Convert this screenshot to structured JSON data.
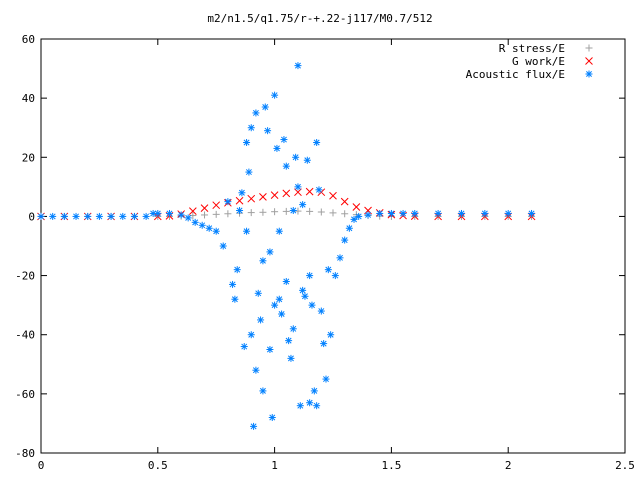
{
  "chart_data": {
    "type": "scatter",
    "title": "m2/n1.5/q1.75/r-+.22-j117/M0.7/512",
    "xlabel": "",
    "ylabel": "",
    "xlim": [
      0,
      2.5
    ],
    "ylim": [
      -80,
      60
    ],
    "x_ticks": [
      0,
      0.5,
      1,
      1.5,
      2,
      2.5
    ],
    "x_tick_labels": [
      "0",
      "0.5",
      "1",
      "1.5",
      "2",
      "2.5"
    ],
    "y_ticks": [
      -80,
      -60,
      -40,
      -20,
      0,
      20,
      40,
      60
    ],
    "y_tick_labels": [
      "-80",
      "-60",
      "-40",
      "-20",
      "0",
      "20",
      "40",
      "60"
    ],
    "grid": false,
    "legend_position": "top-right",
    "series": [
      {
        "name": "R stress/E",
        "color": "#a0a0a0",
        "marker": "plus",
        "x": [
          0.0,
          0.1,
          0.2,
          0.3,
          0.4,
          0.5,
          0.55,
          0.6,
          0.65,
          0.7,
          0.75,
          0.8,
          0.85,
          0.9,
          0.95,
          1.0,
          1.05,
          1.1,
          1.15,
          1.2,
          1.25,
          1.3,
          1.35,
          1.4,
          1.45,
          1.5,
          1.6,
          1.7,
          1.8,
          1.9,
          2.0,
          2.1
        ],
        "y": [
          0,
          0,
          0,
          0,
          0,
          0,
          0,
          0.1,
          0.3,
          0.5,
          0.7,
          0.9,
          1.1,
          1.3,
          1.4,
          1.6,
          1.7,
          1.8,
          1.7,
          1.5,
          1.2,
          0.9,
          0.6,
          0.3,
          0.1,
          0,
          0,
          0,
          0,
          0,
          0,
          0
        ]
      },
      {
        "name": "G work/E",
        "color": "#ff0000",
        "marker": "cross",
        "x": [
          0.0,
          0.1,
          0.2,
          0.3,
          0.4,
          0.5,
          0.55,
          0.6,
          0.65,
          0.7,
          0.75,
          0.8,
          0.85,
          0.9,
          0.95,
          1.0,
          1.05,
          1.1,
          1.15,
          1.2,
          1.25,
          1.3,
          1.35,
          1.4,
          1.45,
          1.5,
          1.55,
          1.6,
          1.7,
          1.8,
          1.9,
          2.0,
          2.1
        ],
        "y": [
          0,
          0,
          0,
          0,
          0,
          0,
          0.2,
          0.8,
          1.8,
          2.8,
          3.8,
          4.6,
          5.3,
          6.0,
          6.6,
          7.2,
          7.8,
          8.2,
          8.4,
          8.2,
          7.0,
          5.0,
          3.2,
          2.0,
          1.2,
          0.6,
          0.3,
          0.1,
          0,
          0,
          0,
          0,
          0
        ]
      },
      {
        "name": "Acoustic flux/E",
        "color": "#0080ff",
        "marker": "asterisk",
        "x": [
          0.0,
          0.05,
          0.1,
          0.15,
          0.2,
          0.25,
          0.3,
          0.35,
          0.4,
          0.45,
          0.48,
          0.5,
          0.55,
          0.6,
          0.63,
          0.66,
          0.69,
          0.72,
          0.75,
          0.78,
          0.8,
          0.82,
          0.84,
          0.86,
          0.88,
          0.9,
          0.92,
          0.94,
          0.96,
          0.98,
          1.0,
          1.02,
          1.04,
          1.06,
          1.08,
          1.1,
          1.12,
          1.14,
          1.16,
          1.18,
          1.2,
          1.22,
          1.24,
          1.26,
          1.28,
          1.3,
          1.32,
          1.34,
          1.36,
          1.4,
          1.45,
          1.5,
          1.55,
          1.6,
          1.7,
          1.8,
          1.9,
          2.0,
          2.1,
          0.83,
          0.87,
          0.89,
          0.91,
          0.93,
          0.95,
          0.97,
          0.99,
          1.01,
          1.03,
          1.05,
          1.07,
          1.09,
          1.11,
          1.13,
          1.15,
          1.17,
          1.19,
          1.21,
          1.23,
          0.85,
          0.95,
          1.05,
          1.15,
          0.9,
          1.0,
          1.1,
          0.88,
          0.98,
          1.08,
          1.18,
          0.92,
          1.02,
          1.12
        ],
        "y": [
          0,
          0,
          0,
          0,
          0,
          0,
          0,
          0,
          0,
          0,
          1,
          1,
          1,
          0.5,
          -0.5,
          -2,
          -3,
          -4,
          -5,
          -10,
          5,
          -23,
          -18,
          8,
          25,
          -40,
          35,
          -35,
          37,
          -45,
          41,
          -5,
          26,
          -42,
          2,
          51,
          -25,
          19,
          -30,
          25,
          -32,
          -55,
          -40,
          -20,
          -14,
          -8,
          -4,
          -1,
          0,
          0.5,
          1,
          1,
          1,
          1,
          1,
          1,
          1,
          1,
          1,
          -28,
          -44,
          15,
          -71,
          -26,
          -59,
          29,
          -68,
          23,
          -33,
          17,
          -48,
          20,
          -64,
          -27,
          -63,
          -59,
          9,
          -43,
          -18,
          2,
          -15,
          -22,
          -20,
          30,
          -30,
          10,
          -5,
          -12,
          -38,
          -64,
          -52,
          -28,
          4
        ]
      }
    ]
  }
}
